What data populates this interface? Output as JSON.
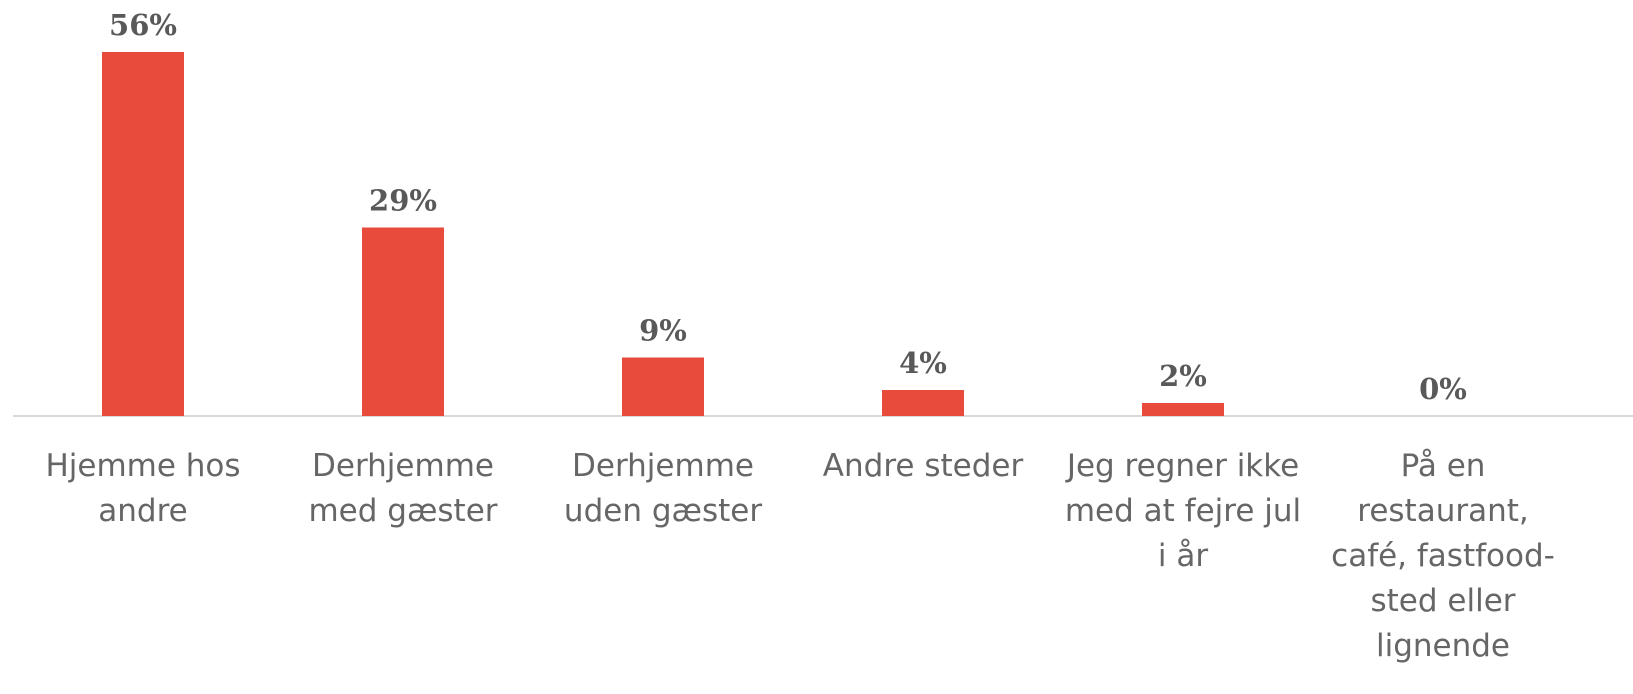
{
  "chart_data": {
    "type": "bar",
    "categories": [
      "Hjemme hos andre",
      "Derhjemme med gæster",
      "Derhjemme uden gæster",
      "Andre steder",
      "Jeg regner ikke med at fejre jul i år",
      "På en restaurant, café, fastfood-sted eller lignende"
    ],
    "values": [
      56,
      29,
      9,
      4,
      2,
      0
    ],
    "value_labels": [
      "56%",
      "29%",
      "9%",
      "4%",
      "2%",
      "0%"
    ],
    "color": "#e84a3c"
  }
}
